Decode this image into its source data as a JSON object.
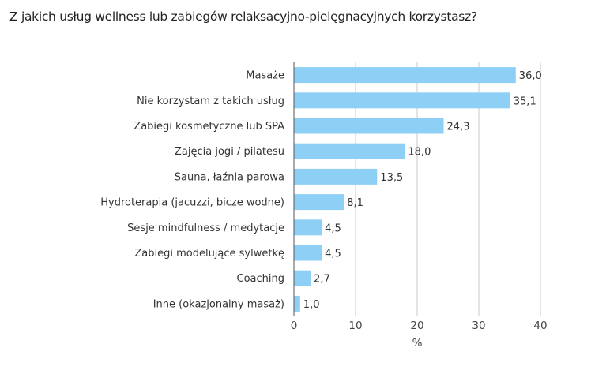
{
  "chart_data": {
    "type": "bar",
    "orientation": "horizontal",
    "title": "Z jakich usług wellness lub zabiegów relaksacyjno-pielęgnacyjnych korzystasz?",
    "xlabel": "%",
    "ylabel": "",
    "categories": [
      "Masaże",
      "Nie korzystam z takich usług",
      "Zabiegi kosmetyczne lub SPA",
      "Zajęcia jogi / pilatesu",
      "Sauna, łaźnia parowa",
      "Hydroterapia (jacuzzi, bicze wodne)",
      "Sesje mindfulness / medytacje",
      "Zabiegi modelujące sylwetkę",
      "Coaching",
      "Inne (okazjonalny masaż)"
    ],
    "values": [
      36.0,
      35.1,
      24.3,
      18.0,
      13.5,
      8.1,
      4.5,
      4.5,
      2.7,
      1.0
    ],
    "data_labels": [
      "36,0",
      "35,1",
      "24,3",
      "18,0",
      "13,5",
      "8,1",
      "4,5",
      "4,5",
      "2,7",
      "1,0"
    ],
    "xlim": [
      0,
      40
    ],
    "xticks": [
      "0",
      "10",
      "20",
      "30",
      "40"
    ],
    "grid": "vertical",
    "bar_color": "#8ed0f5"
  }
}
